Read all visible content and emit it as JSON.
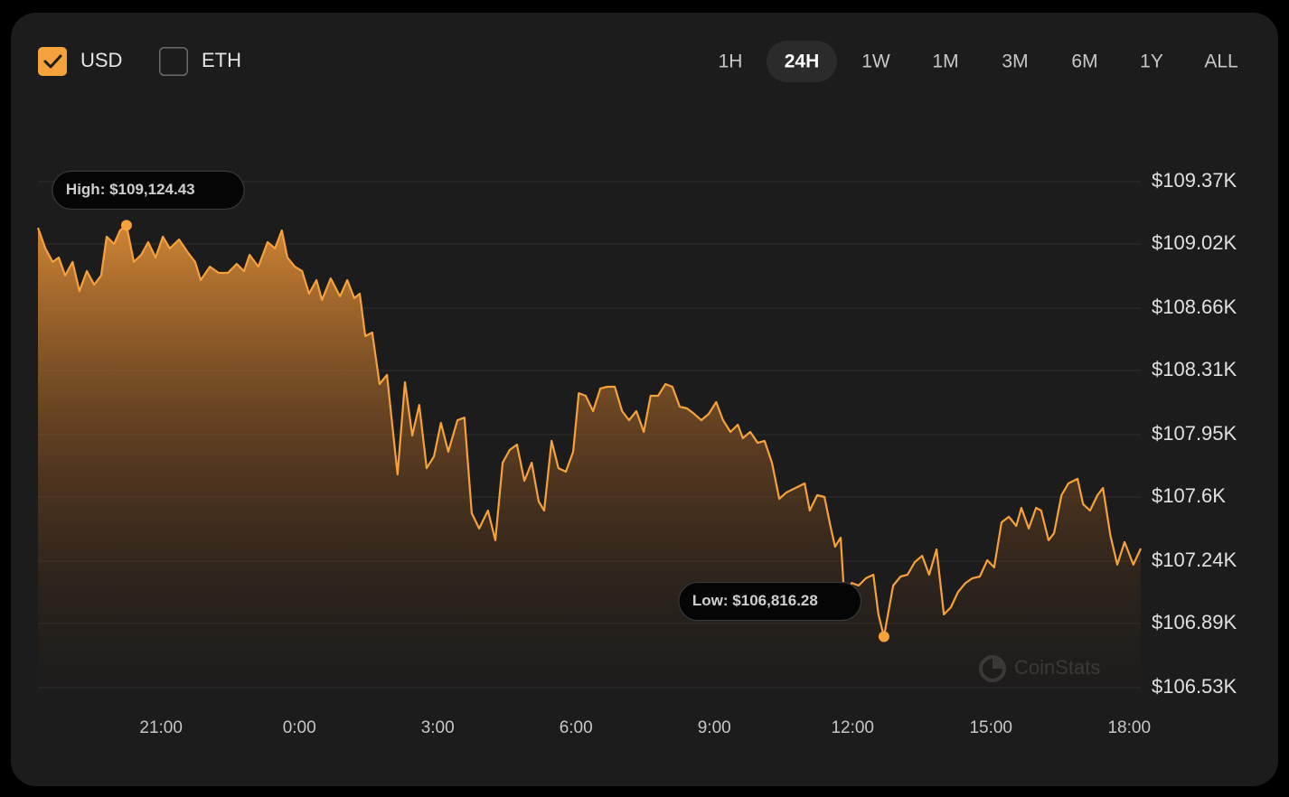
{
  "controls": {
    "currencies": [
      {
        "label": "USD",
        "checked": true
      },
      {
        "label": "ETH",
        "checked": false
      }
    ],
    "ranges": [
      "1H",
      "24H",
      "1W",
      "1M",
      "3M",
      "6M",
      "1Y",
      "ALL"
    ],
    "active_range": 1
  },
  "chart_data": {
    "type": "area",
    "watermark": "CoinStats",
    "x": [
      18.33,
      18.49,
      18.65,
      18.78,
      18.92,
      19.08,
      19.23,
      19.39,
      19.55,
      19.7,
      19.82,
      19.98,
      20.11,
      20.25,
      20.41,
      20.57,
      20.72,
      20.88,
      21.04,
      21.19,
      21.39,
      21.59,
      21.74,
      21.86,
      22.06,
      22.25,
      22.45,
      22.64,
      22.8,
      22.92,
      23.11,
      23.31,
      23.47,
      23.62,
      23.74,
      23.9,
      24.06,
      24.21,
      24.37,
      24.49,
      24.68,
      24.88,
      25.04,
      25.19,
      25.31,
      25.43,
      25.58,
      25.74,
      25.9,
      26.13,
      26.29,
      26.45,
      26.6,
      26.76,
      26.92,
      27.07,
      27.23,
      27.43,
      27.58,
      27.74,
      27.9,
      28.09,
      28.25,
      28.41,
      28.56,
      28.72,
      28.88,
      29.04,
      29.19,
      29.31,
      29.47,
      29.62,
      29.78,
      29.94,
      30.06,
      30.21,
      30.37,
      30.53,
      30.68,
      30.84,
      31.0,
      31.15,
      31.31,
      31.47,
      31.62,
      31.78,
      31.94,
      32.09,
      32.25,
      32.41,
      32.56,
      32.72,
      32.88,
      33.04,
      33.19,
      33.35,
      33.51,
      33.62,
      33.78,
      33.94,
      34.09,
      34.25,
      34.41,
      34.56,
      34.76,
      34.96,
      35.07,
      35.23,
      35.39,
      35.51,
      35.62,
      35.74,
      35.82,
      35.98,
      36.13,
      36.29,
      36.45,
      36.56,
      36.68,
      36.88,
      37.04,
      37.19,
      37.35,
      37.51,
      37.66,
      37.82,
      37.98,
      38.13,
      38.29,
      38.45,
      38.6,
      38.76,
      38.92,
      39.07,
      39.23,
      39.39,
      39.55,
      39.66,
      39.82,
      39.98,
      40.09,
      40.25,
      40.37,
      40.53,
      40.68,
      40.88,
      41.0,
      41.15,
      41.31,
      41.43,
      41.59,
      41.74,
      41.9,
      42.09,
      42.25
    ],
    "series": [
      {
        "color": "#f5a13c",
        "values": [
          109111,
          108995,
          108919,
          108944,
          108843,
          108919,
          108756,
          108868,
          108792,
          108843,
          109061,
          109020,
          109096,
          109124.43,
          108919,
          108959,
          109030,
          108944,
          109061,
          108995,
          109045,
          108969,
          108919,
          108817,
          108893,
          108858,
          108858,
          108908,
          108868,
          108959,
          108893,
          109030,
          108995,
          109096,
          108944,
          108893,
          108868,
          108741,
          108817,
          108706,
          108827,
          108726,
          108817,
          108716,
          108741,
          108503,
          108523,
          108234,
          108285,
          107727,
          108244,
          107945,
          108117,
          107762,
          107828,
          108016,
          107854,
          108031,
          108046,
          107509,
          107423,
          107524,
          107357,
          107793,
          107864,
          107894,
          107691,
          107793,
          107575,
          107524,
          107915,
          107762,
          107742,
          107854,
          108183,
          108168,
          108082,
          108209,
          108219,
          108219,
          108082,
          108031,
          108082,
          107965,
          108168,
          108168,
          108234,
          108219,
          108107,
          108097,
          108067,
          108031,
          108067,
          108133,
          108031,
          107965,
          108006,
          107930,
          107965,
          107904,
          107915,
          107793,
          107590,
          107625,
          107651,
          107676,
          107524,
          107610,
          107600,
          107448,
          107321,
          107372,
          107042,
          107118,
          107103,
          107144,
          107164,
          106941,
          106816.28,
          107103,
          107154,
          107164,
          107235,
          107270,
          107164,
          107306,
          106941,
          106981,
          107068,
          107118,
          107144,
          107154,
          107245,
          107205,
          107458,
          107489,
          107438,
          107539,
          107423,
          107539,
          107524,
          107357,
          107397,
          107610,
          107676,
          107702,
          107560,
          107524,
          107610,
          107651,
          107387,
          107220,
          107347,
          107220,
          107311
        ]
      }
    ],
    "annotations": [
      {
        "text": "High: $109,124.43",
        "index": 13
      },
      {
        "text": "Low: $106,816.28",
        "index": 118
      }
    ],
    "xlim": [
      18.33,
      42.25
    ],
    "xticks": [
      {
        "value": 21,
        "label": "21:00"
      },
      {
        "value": 24,
        "label": "0:00"
      },
      {
        "value": 27,
        "label": "3:00"
      },
      {
        "value": 30,
        "label": "6:00"
      },
      {
        "value": 33,
        "label": "9:00"
      },
      {
        "value": 36,
        "label": "12:00"
      },
      {
        "value": 39,
        "label": "15:00"
      },
      {
        "value": 42,
        "label": "18:00"
      }
    ],
    "ylim": [
      106530,
      109370
    ],
    "yticks": [
      {
        "value": 106530,
        "label": "$106.53K"
      },
      {
        "value": 106890,
        "label": "$106.89K"
      },
      {
        "value": 107240,
        "label": "$107.24K"
      },
      {
        "value": 107600,
        "label": "$107.6K"
      },
      {
        "value": 107950,
        "label": "$107.95K"
      },
      {
        "value": 108310,
        "label": "$108.31K"
      },
      {
        "value": 108660,
        "label": "$108.66K"
      },
      {
        "value": 109020,
        "label": "$109.02K"
      },
      {
        "value": 109370,
        "label": "$109.37K"
      }
    ],
    "grid": true
  }
}
